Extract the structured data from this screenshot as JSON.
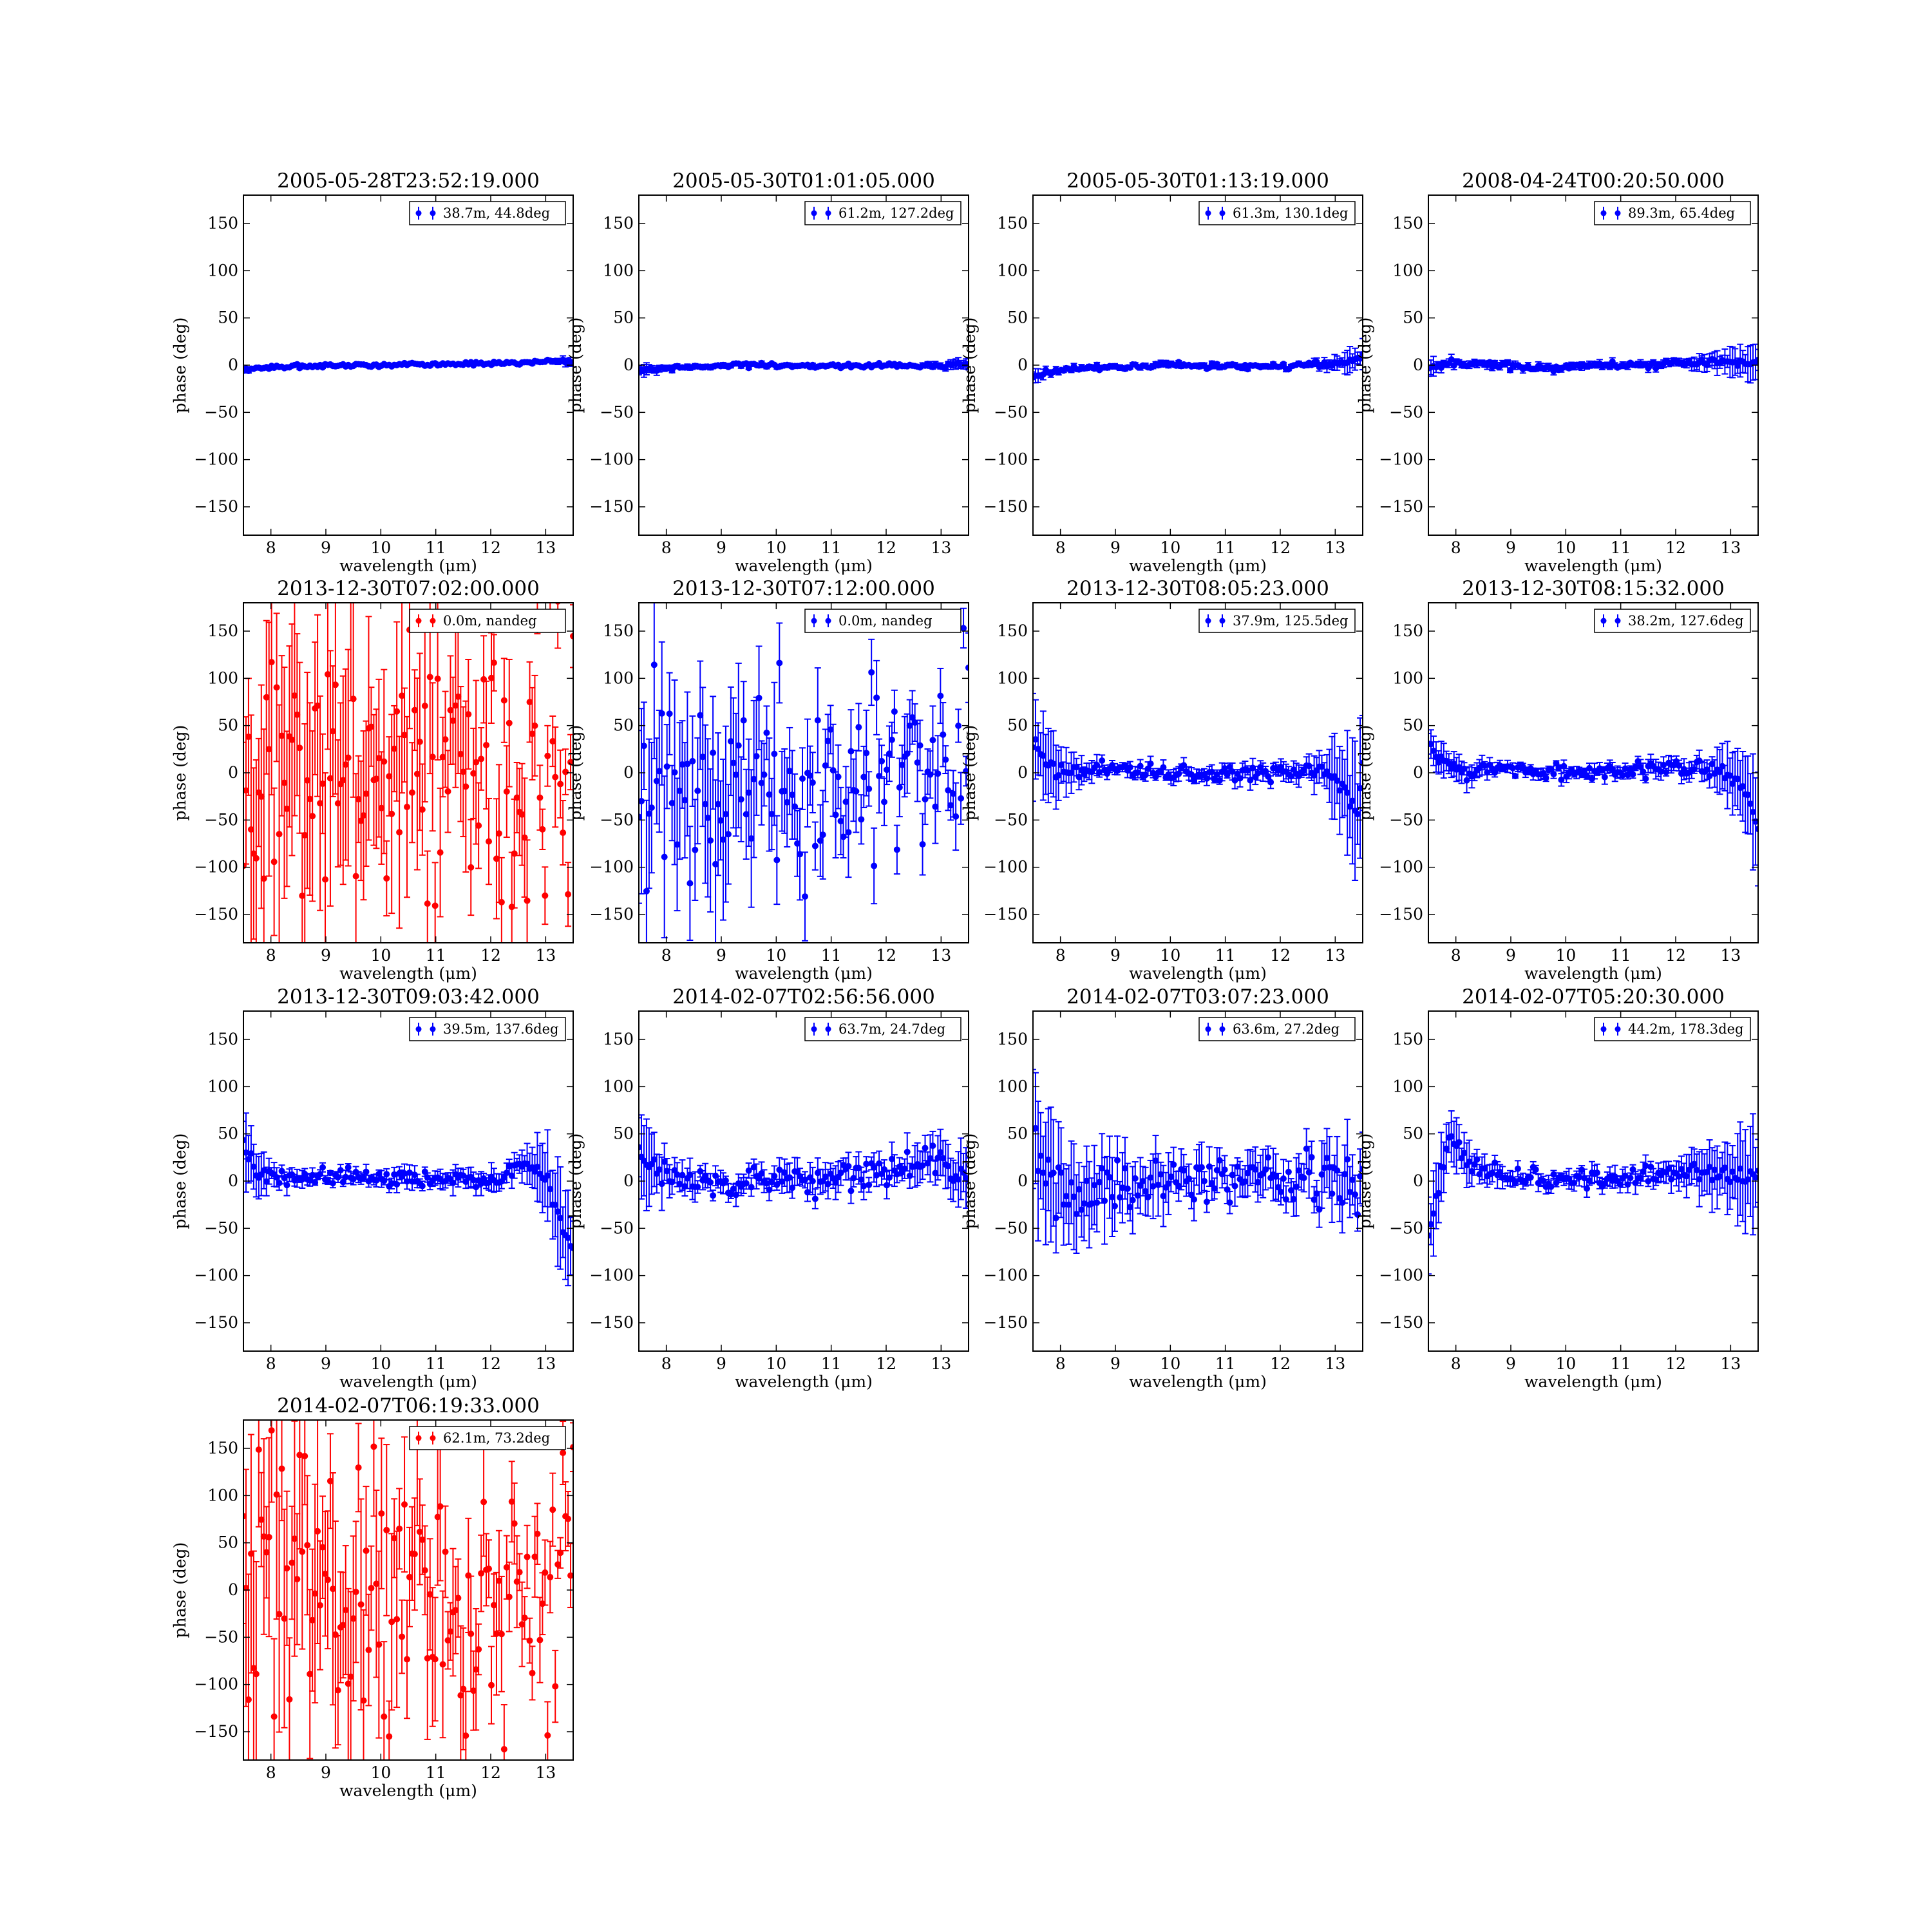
{
  "chart_data": [
    {
      "type": "scatter",
      "title": "2005-05-28T23:52:19.000",
      "legend": "38.7m, 44.8deg",
      "color": "#0000ff",
      "xlabel": "wavelength (μm)",
      "ylabel": "phase (deg)",
      "xlim": [
        7.5,
        13.5
      ],
      "ylim": [
        -180,
        180
      ],
      "profile": [
        [
          7.5,
          -6
        ],
        [
          8.0,
          -2
        ],
        [
          9.0,
          0
        ],
        [
          10.0,
          0
        ],
        [
          11.0,
          1
        ],
        [
          12.0,
          2
        ],
        [
          12.8,
          3
        ],
        [
          13.2,
          5
        ],
        [
          13.5,
          2
        ]
      ],
      "errors": [
        [
          7.5,
          2
        ],
        [
          8,
          1
        ],
        [
          13.0,
          1
        ],
        [
          13.5,
          4
        ]
      ],
      "noise": 1.0
    },
    {
      "type": "scatter",
      "title": "2005-05-30T01:01:05.000",
      "legend": "61.2m, 127.2deg",
      "color": "#0000ff",
      "xlabel": "wavelength (μm)",
      "ylabel": "phase (deg)",
      "xlim": [
        7.5,
        13.5
      ],
      "ylim": [
        -180,
        180
      ],
      "profile": [
        [
          7.5,
          -6
        ],
        [
          8.0,
          -3
        ],
        [
          9.0,
          -1
        ],
        [
          10.0,
          0
        ],
        [
          11.0,
          -1
        ],
        [
          12.0,
          -1
        ],
        [
          13.0,
          0
        ],
        [
          13.5,
          1
        ]
      ],
      "errors": [
        [
          7.5,
          6
        ],
        [
          8,
          2
        ],
        [
          12.5,
          1
        ],
        [
          13.5,
          6
        ]
      ],
      "noise": 1.2
    },
    {
      "type": "scatter",
      "title": "2005-05-30T01:13:19.000",
      "legend": "61.3m, 130.1deg",
      "color": "#0000ff",
      "xlabel": "wavelength (μm)",
      "ylabel": "phase (deg)",
      "xlim": [
        7.5,
        13.5
      ],
      "ylim": [
        -180,
        180
      ],
      "profile": [
        [
          7.5,
          -12
        ],
        [
          7.8,
          -8
        ],
        [
          8.3,
          -3
        ],
        [
          9.0,
          -2
        ],
        [
          10.0,
          1
        ],
        [
          11.0,
          -1
        ],
        [
          12.0,
          -1
        ],
        [
          13.0,
          2
        ],
        [
          13.4,
          6
        ],
        [
          13.5,
          9
        ]
      ],
      "errors": [
        [
          7.5,
          6
        ],
        [
          8,
          2
        ],
        [
          12.5,
          2
        ],
        [
          13.5,
          12
        ]
      ],
      "noise": 1.5
    },
    {
      "type": "scatter",
      "title": "2008-04-24T00:20:50.000",
      "legend": "89.3m, 65.4deg",
      "color": "#0000ff",
      "xlabel": "wavelength (μm)",
      "ylabel": "phase (deg)",
      "xlim": [
        7.5,
        13.5
      ],
      "ylim": [
        -180,
        180
      ],
      "profile": [
        [
          7.5,
          -3
        ],
        [
          7.8,
          2
        ],
        [
          8.5,
          0
        ],
        [
          9.5,
          -2
        ],
        [
          10.5,
          -1
        ],
        [
          11.5,
          0
        ],
        [
          12.0,
          2
        ],
        [
          12.5,
          3
        ],
        [
          13.0,
          3
        ],
        [
          13.5,
          2
        ]
      ],
      "errors": [
        [
          7.5,
          8
        ],
        [
          8,
          3
        ],
        [
          12,
          3
        ],
        [
          13.5,
          15
        ]
      ],
      "noise": 2.0
    },
    {
      "type": "scatter",
      "title": "2013-12-30T07:02:00.000",
      "legend": "0.0m, nandeg",
      "color": "#ff0000",
      "xlabel": "wavelength (μm)",
      "ylabel": "phase (deg)",
      "xlim": [
        7.5,
        13.5
      ],
      "ylim": [
        -180,
        180
      ],
      "profile": [
        [
          7.5,
          0
        ],
        [
          13.5,
          10
        ]
      ],
      "errors": [
        [
          7.5,
          110
        ],
        [
          10,
          80
        ],
        [
          12,
          55
        ],
        [
          13.5,
          30
        ]
      ],
      "noise": 75
    },
    {
      "type": "scatter",
      "title": "2013-12-30T07:12:00.000",
      "legend": "0.0m, nandeg",
      "color": "#0000ff",
      "xlabel": "wavelength (μm)",
      "ylabel": "phase (deg)",
      "xlim": [
        7.5,
        13.5
      ],
      "ylim": [
        -180,
        180
      ],
      "profile": [
        [
          7.5,
          -10
        ],
        [
          10,
          -10
        ],
        [
          11,
          -25
        ],
        [
          12,
          -10
        ],
        [
          13,
          30
        ],
        [
          13.5,
          30
        ]
      ],
      "errors": [
        [
          7.5,
          70
        ],
        [
          9.5,
          60
        ],
        [
          11,
          35
        ],
        [
          13.5,
          25
        ]
      ],
      "noise": 45
    },
    {
      "type": "scatter",
      "title": "2013-12-30T08:05:23.000",
      "legend": "37.9m, 125.5deg",
      "color": "#0000ff",
      "xlabel": "wavelength (μm)",
      "ylabel": "phase (deg)",
      "xlim": [
        7.5,
        13.5
      ],
      "ylim": [
        -180,
        180
      ],
      "profile": [
        [
          7.5,
          35
        ],
        [
          7.8,
          10
        ],
        [
          8.2,
          0
        ],
        [
          9,
          5
        ],
        [
          10,
          0
        ],
        [
          11,
          -2
        ],
        [
          12,
          2
        ],
        [
          12.8,
          5
        ],
        [
          13.2,
          -20
        ],
        [
          13.4,
          -50
        ],
        [
          13.5,
          10
        ]
      ],
      "errors": [
        [
          7.5,
          40
        ],
        [
          8,
          20
        ],
        [
          9,
          5
        ],
        [
          12.5,
          8
        ],
        [
          13.5,
          60
        ]
      ],
      "noise": 4
    },
    {
      "type": "scatter",
      "title": "2013-12-30T08:15:32.000",
      "legend": "38.2m, 127.6deg",
      "color": "#0000ff",
      "xlabel": "wavelength (μm)",
      "ylabel": "phase (deg)",
      "xlim": [
        7.5,
        13.5
      ],
      "ylim": [
        -180,
        180
      ],
      "profile": [
        [
          7.5,
          30
        ],
        [
          7.8,
          10
        ],
        [
          8.2,
          0
        ],
        [
          9,
          5
        ],
        [
          10,
          0
        ],
        [
          11,
          0
        ],
        [
          12,
          5
        ],
        [
          12.8,
          5
        ],
        [
          13.3,
          -20
        ],
        [
          13.5,
          -60
        ]
      ],
      "errors": [
        [
          7.5,
          20
        ],
        [
          8,
          10
        ],
        [
          9,
          4
        ],
        [
          12.5,
          8
        ],
        [
          13.5,
          50
        ]
      ],
      "noise": 4
    },
    {
      "type": "scatter",
      "title": "2013-12-30T09:03:42.000",
      "legend": "39.5m, 137.6deg",
      "color": "#0000ff",
      "xlabel": "wavelength (μm)",
      "ylabel": "phase (deg)",
      "xlim": [
        7.5,
        13.5
      ],
      "ylim": [
        -180,
        180
      ],
      "profile": [
        [
          7.5,
          40
        ],
        [
          7.8,
          10
        ],
        [
          8.2,
          5
        ],
        [
          9,
          5
        ],
        [
          10,
          5
        ],
        [
          11,
          2
        ],
        [
          12,
          0
        ],
        [
          12.5,
          15
        ],
        [
          13,
          10
        ],
        [
          13.3,
          -50
        ],
        [
          13.5,
          -80
        ]
      ],
      "errors": [
        [
          7.5,
          30
        ],
        [
          8,
          10
        ],
        [
          9,
          4
        ],
        [
          12.5,
          12
        ],
        [
          13.5,
          50
        ]
      ],
      "noise": 5
    },
    {
      "type": "scatter",
      "title": "2014-02-07T02:56:56.000",
      "legend": "63.7m, 24.7deg",
      "color": "#0000ff",
      "xlabel": "wavelength (μm)",
      "ylabel": "phase (deg)",
      "xlim": [
        7.5,
        13.5
      ],
      "ylim": [
        -180,
        180
      ],
      "profile": [
        [
          7.5,
          40
        ],
        [
          7.8,
          10
        ],
        [
          8.2,
          0
        ],
        [
          9,
          0
        ],
        [
          10,
          -3
        ],
        [
          11,
          5
        ],
        [
          12,
          10
        ],
        [
          12.5,
          25
        ],
        [
          13,
          20
        ],
        [
          13.5,
          0
        ]
      ],
      "errors": [
        [
          7.5,
          40
        ],
        [
          8,
          15
        ],
        [
          9,
          8
        ],
        [
          12.5,
          15
        ],
        [
          13.5,
          25
        ]
      ],
      "noise": 8
    },
    {
      "type": "scatter",
      "title": "2014-02-07T03:07:23.000",
      "legend": "63.6m, 27.2deg",
      "color": "#0000ff",
      "xlabel": "wavelength (μm)",
      "ylabel": "phase (deg)",
      "xlim": [
        7.5,
        13.5
      ],
      "ylim": [
        -180,
        180
      ],
      "profile": [
        [
          7.5,
          30
        ],
        [
          8,
          -10
        ],
        [
          9,
          -10
        ],
        [
          10,
          0
        ],
        [
          11,
          5
        ],
        [
          12,
          5
        ],
        [
          13,
          0
        ],
        [
          13.5,
          -15
        ]
      ],
      "errors": [
        [
          7.5,
          70
        ],
        [
          8,
          40
        ],
        [
          9.5,
          25
        ],
        [
          11,
          15
        ],
        [
          13.5,
          30
        ]
      ],
      "noise": 15
    },
    {
      "type": "scatter",
      "title": "2014-02-07T05:20:30.000",
      "legend": "44.2m, 178.3deg",
      "color": "#0000ff",
      "xlabel": "wavelength (μm)",
      "ylabel": "phase (deg)",
      "xlim": [
        7.5,
        13.5
      ],
      "ylim": [
        -180,
        180
      ],
      "profile": [
        [
          7.5,
          -60
        ],
        [
          7.7,
          0
        ],
        [
          7.9,
          50
        ],
        [
          8.2,
          15
        ],
        [
          9,
          5
        ],
        [
          10,
          0
        ],
        [
          11,
          2
        ],
        [
          12,
          10
        ],
        [
          13,
          5
        ],
        [
          13.5,
          10
        ]
      ],
      "errors": [
        [
          7.5,
          40
        ],
        [
          8,
          20
        ],
        [
          9,
          6
        ],
        [
          12,
          10
        ],
        [
          13.5,
          50
        ]
      ],
      "noise": 5
    },
    {
      "type": "scatter",
      "title": "2014-02-07T06:19:33.000",
      "legend": "62.1m, 73.2deg",
      "color": "#ff0000",
      "xlabel": "wavelength (μm)",
      "ylabel": "phase (deg)",
      "xlim": [
        7.5,
        13.5
      ],
      "ylim": [
        -180,
        180
      ],
      "profile": [
        [
          7.5,
          10
        ],
        [
          10,
          0
        ],
        [
          12,
          -10
        ],
        [
          13.5,
          20
        ]
      ],
      "errors": [
        [
          7.5,
          100
        ],
        [
          10,
          75
        ],
        [
          12,
          45
        ],
        [
          13.5,
          25
        ]
      ],
      "noise": 70
    }
  ]
}
